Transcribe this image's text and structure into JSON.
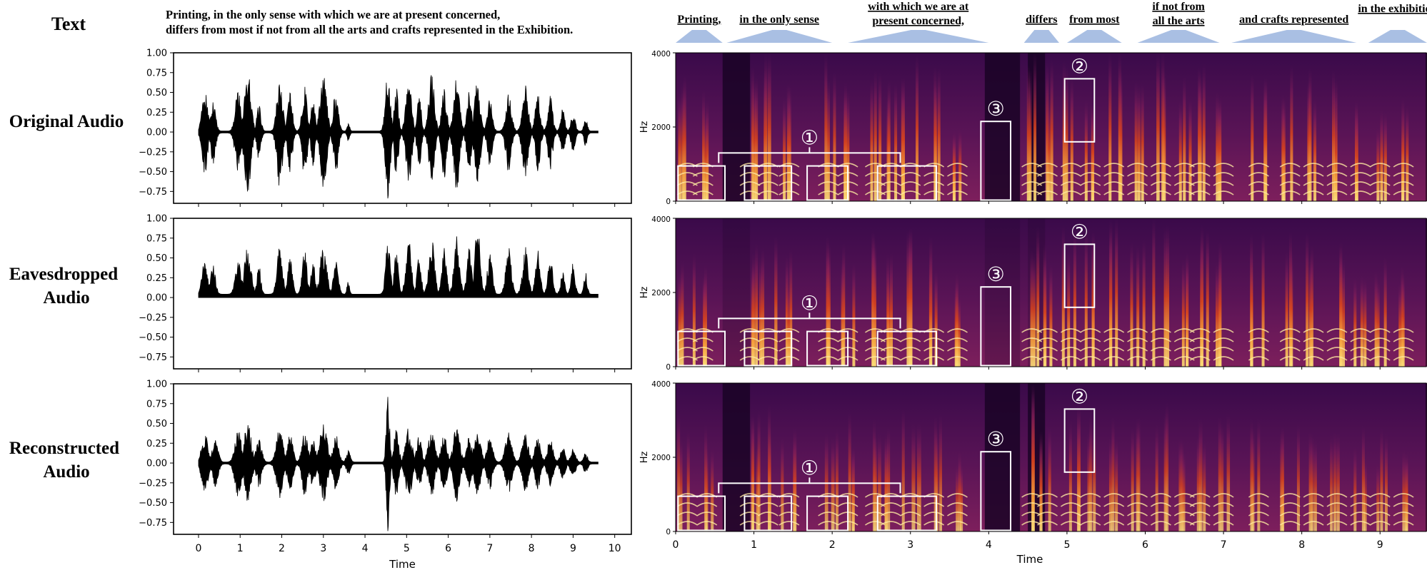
{
  "row_header": "Text",
  "transcript_lines": [
    "Printing, in the only sense with which we are at present concerned,",
    "differs from most if not from all the arts and crafts represented in the Exhibition."
  ],
  "rows": [
    {
      "label_lines": [
        "Original Audio"
      ]
    },
    {
      "label_lines": [
        "Eavesdropped",
        "Audio"
      ]
    },
    {
      "label_lines": [
        "Reconstructed",
        "Audio"
      ]
    }
  ],
  "phrases": [
    {
      "lines": [
        "Printing,"
      ],
      "t0": 0.0,
      "t1": 0.6
    },
    {
      "lines": [
        "in the only sense"
      ],
      "t0": 0.65,
      "t1": 2.0
    },
    {
      "lines": [
        "with which we are at",
        "present concerned,"
      ],
      "t0": 2.2,
      "t1": 4.0
    },
    {
      "lines": [
        "differs"
      ],
      "t0": 4.45,
      "t1": 4.9
    },
    {
      "lines": [
        "from most"
      ],
      "t0": 5.0,
      "t1": 5.7
    },
    {
      "lines": [
        "if not from",
        "all the arts"
      ],
      "t0": 5.9,
      "t1": 6.95
    },
    {
      "lines": [
        "and crafts represented"
      ],
      "t0": 7.1,
      "t1": 8.7
    },
    {
      "lines": [
        "in the exhibition"
      ],
      "t0": 8.85,
      "t1": 9.6
    }
  ],
  "annotations": {
    "one": "①",
    "two": "②",
    "three": "③"
  },
  "colors": {
    "waveform": "#000000",
    "spectrogram_dark": "#1a0326",
    "spectrogram_mid": "#7a1d63",
    "spectrogram_hot": "#e8521c",
    "spectrogram_bright": "#fde07a",
    "phrase_envelope": "#a9bfe3",
    "annotation_box": "#ffffff"
  },
  "chart_data": [
    {
      "type": "line",
      "panel": "waveform",
      "row": "Original Audio",
      "xlim": [
        -0.6,
        10.4
      ],
      "ylim": [
        -0.9,
        1.0
      ],
      "yticks": [
        "1.00",
        "0.75",
        "0.50",
        "0.25",
        "0.00",
        "−0.25",
        "−0.50",
        "−0.75"
      ],
      "bursts": [
        {
          "t": 0.15,
          "w": 0.14,
          "a": 0.52
        },
        {
          "t": 0.35,
          "w": 0.12,
          "a": 0.4
        },
        {
          "t": 0.95,
          "w": 0.14,
          "a": 0.55
        },
        {
          "t": 1.18,
          "w": 0.16,
          "a": 0.78
        },
        {
          "t": 1.45,
          "w": 0.1,
          "a": 0.35
        },
        {
          "t": 1.95,
          "w": 0.14,
          "a": 0.72
        },
        {
          "t": 2.2,
          "w": 0.12,
          "a": 0.5
        },
        {
          "t": 2.55,
          "w": 0.12,
          "a": 0.6
        },
        {
          "t": 2.75,
          "w": 0.1,
          "a": 0.45
        },
        {
          "t": 3.0,
          "w": 0.16,
          "a": 0.72
        },
        {
          "t": 3.3,
          "w": 0.12,
          "a": 0.55
        },
        {
          "t": 3.6,
          "w": 0.06,
          "a": 0.12
        },
        {
          "t": 4.55,
          "w": 0.12,
          "a": 0.85
        },
        {
          "t": 4.75,
          "w": 0.1,
          "a": 0.6
        },
        {
          "t": 5.05,
          "w": 0.14,
          "a": 0.7
        },
        {
          "t": 5.3,
          "w": 0.1,
          "a": 0.5
        },
        {
          "t": 5.6,
          "w": 0.14,
          "a": 0.72
        },
        {
          "t": 5.9,
          "w": 0.12,
          "a": 0.6
        },
        {
          "t": 6.2,
          "w": 0.14,
          "a": 0.8
        },
        {
          "t": 6.5,
          "w": 0.12,
          "a": 0.5
        },
        {
          "t": 6.7,
          "w": 0.14,
          "a": 0.65
        },
        {
          "t": 7.0,
          "w": 0.12,
          "a": 0.42
        },
        {
          "t": 7.45,
          "w": 0.14,
          "a": 0.5
        },
        {
          "t": 7.85,
          "w": 0.14,
          "a": 0.58
        },
        {
          "t": 8.15,
          "w": 0.12,
          "a": 0.5
        },
        {
          "t": 8.45,
          "w": 0.12,
          "a": 0.48
        },
        {
          "t": 8.75,
          "w": 0.1,
          "a": 0.3
        },
        {
          "t": 9.0,
          "w": 0.1,
          "a": 0.25
        },
        {
          "t": 9.3,
          "w": 0.08,
          "a": 0.18
        }
      ],
      "signal_end": 9.6,
      "rectified": false
    },
    {
      "type": "line",
      "panel": "waveform",
      "row": "Eavesdropped Audio",
      "xlim": [
        -0.6,
        10.4
      ],
      "ylim": [
        -0.9,
        1.0
      ],
      "yticks": [
        "1.00",
        "0.75",
        "0.50",
        "0.25",
        "0.00",
        "−0.25",
        "−0.50",
        "−0.75"
      ],
      "bursts": [
        {
          "t": 0.15,
          "w": 0.14,
          "a": 0.45
        },
        {
          "t": 0.35,
          "w": 0.12,
          "a": 0.4
        },
        {
          "t": 0.95,
          "w": 0.14,
          "a": 0.45
        },
        {
          "t": 1.18,
          "w": 0.16,
          "a": 0.65
        },
        {
          "t": 1.45,
          "w": 0.1,
          "a": 0.4
        },
        {
          "t": 1.95,
          "w": 0.14,
          "a": 0.6
        },
        {
          "t": 2.2,
          "w": 0.12,
          "a": 0.5
        },
        {
          "t": 2.55,
          "w": 0.12,
          "a": 0.55
        },
        {
          "t": 2.75,
          "w": 0.1,
          "a": 0.45
        },
        {
          "t": 3.0,
          "w": 0.16,
          "a": 0.65
        },
        {
          "t": 3.3,
          "w": 0.12,
          "a": 0.5
        },
        {
          "t": 3.6,
          "w": 0.06,
          "a": 0.2
        },
        {
          "t": 4.55,
          "w": 0.12,
          "a": 0.65
        },
        {
          "t": 4.75,
          "w": 0.1,
          "a": 0.55
        },
        {
          "t": 5.05,
          "w": 0.14,
          "a": 0.7
        },
        {
          "t": 5.3,
          "w": 0.1,
          "a": 0.55
        },
        {
          "t": 5.6,
          "w": 0.14,
          "a": 0.75
        },
        {
          "t": 5.9,
          "w": 0.12,
          "a": 0.6
        },
        {
          "t": 6.2,
          "w": 0.14,
          "a": 0.75
        },
        {
          "t": 6.5,
          "w": 0.12,
          "a": 0.6
        },
        {
          "t": 6.7,
          "w": 0.14,
          "a": 0.88
        },
        {
          "t": 7.0,
          "w": 0.12,
          "a": 0.55
        },
        {
          "t": 7.45,
          "w": 0.14,
          "a": 0.6
        },
        {
          "t": 7.85,
          "w": 0.14,
          "a": 0.6
        },
        {
          "t": 8.15,
          "w": 0.12,
          "a": 0.58
        },
        {
          "t": 8.45,
          "w": 0.12,
          "a": 0.5
        },
        {
          "t": 8.75,
          "w": 0.1,
          "a": 0.3
        },
        {
          "t": 9.0,
          "w": 0.1,
          "a": 0.4
        },
        {
          "t": 9.3,
          "w": 0.08,
          "a": 0.3
        }
      ],
      "signal_end": 9.6,
      "rectified": true
    },
    {
      "type": "line",
      "panel": "waveform",
      "row": "Reconstructed Audio",
      "xlabel": "Time",
      "xticks": [
        "0",
        "1",
        "2",
        "3",
        "4",
        "5",
        "6",
        "7",
        "8",
        "9",
        "10"
      ],
      "xlim": [
        -0.6,
        10.4
      ],
      "ylim": [
        -0.9,
        1.0
      ],
      "yticks": [
        "1.00",
        "0.75",
        "0.50",
        "0.25",
        "0.00",
        "−0.25",
        "−0.50",
        "−0.75"
      ],
      "bursts": [
        {
          "t": 0.15,
          "w": 0.16,
          "a": 0.38
        },
        {
          "t": 0.4,
          "w": 0.14,
          "a": 0.3
        },
        {
          "t": 0.95,
          "w": 0.16,
          "a": 0.42
        },
        {
          "t": 1.18,
          "w": 0.18,
          "a": 0.5
        },
        {
          "t": 1.45,
          "w": 0.14,
          "a": 0.3
        },
        {
          "t": 1.95,
          "w": 0.16,
          "a": 0.45
        },
        {
          "t": 2.2,
          "w": 0.14,
          "a": 0.35
        },
        {
          "t": 2.55,
          "w": 0.14,
          "a": 0.4
        },
        {
          "t": 2.75,
          "w": 0.12,
          "a": 0.32
        },
        {
          "t": 3.0,
          "w": 0.18,
          "a": 0.5
        },
        {
          "t": 3.3,
          "w": 0.14,
          "a": 0.35
        },
        {
          "t": 3.6,
          "w": 0.1,
          "a": 0.15
        },
        {
          "t": 4.55,
          "w": 0.08,
          "a": 0.88
        },
        {
          "t": 4.75,
          "w": 0.12,
          "a": 0.42
        },
        {
          "t": 5.05,
          "w": 0.16,
          "a": 0.45
        },
        {
          "t": 5.3,
          "w": 0.12,
          "a": 0.35
        },
        {
          "t": 5.6,
          "w": 0.16,
          "a": 0.42
        },
        {
          "t": 5.9,
          "w": 0.14,
          "a": 0.38
        },
        {
          "t": 6.2,
          "w": 0.16,
          "a": 0.48
        },
        {
          "t": 6.5,
          "w": 0.14,
          "a": 0.32
        },
        {
          "t": 6.7,
          "w": 0.16,
          "a": 0.4
        },
        {
          "t": 7.0,
          "w": 0.14,
          "a": 0.35
        },
        {
          "t": 7.45,
          "w": 0.16,
          "a": 0.38
        },
        {
          "t": 7.85,
          "w": 0.16,
          "a": 0.35
        },
        {
          "t": 8.15,
          "w": 0.14,
          "a": 0.32
        },
        {
          "t": 8.45,
          "w": 0.14,
          "a": 0.3
        },
        {
          "t": 8.75,
          "w": 0.12,
          "a": 0.2
        },
        {
          "t": 9.0,
          "w": 0.12,
          "a": 0.18
        },
        {
          "t": 9.3,
          "w": 0.1,
          "a": 0.12
        }
      ],
      "signal_end": 9.6,
      "rectified": false
    },
    {
      "type": "heatmap",
      "panel": "spectrogram",
      "rows": [
        "Original Audio",
        "Eavesdropped Audio",
        "Reconstructed Audio"
      ],
      "ylabel": "Hz",
      "yticks": [
        "4000",
        "2000",
        "0"
      ],
      "ylim": [
        0,
        4000
      ],
      "xlabel": "Time",
      "xticks": [
        "0",
        "1",
        "2",
        "3",
        "4",
        "5",
        "6",
        "7",
        "8",
        "9"
      ],
      "xlim": [
        0,
        9.6
      ],
      "silent_gaps": [
        [
          0.6,
          0.95
        ],
        [
          3.95,
          4.4
        ],
        [
          4.5,
          4.72
        ]
      ],
      "boxes": [
        {
          "label": "one",
          "t0": 0.03,
          "t1": 0.63,
          "f0": 30,
          "f1": 950
        },
        {
          "label": "one",
          "t0": 0.88,
          "t1": 1.48,
          "f0": 30,
          "f1": 950
        },
        {
          "label": "one",
          "t0": 1.68,
          "t1": 2.2,
          "f0": 30,
          "f1": 950
        },
        {
          "label": "one",
          "t0": 2.58,
          "t1": 3.33,
          "f0": 30,
          "f1": 950
        },
        {
          "label": "two",
          "t0": 4.97,
          "t1": 5.35,
          "f0": 1600,
          "f1": 3300
        },
        {
          "label": "three",
          "t0": 3.9,
          "t1": 4.28,
          "f0": 30,
          "f1": 2150
        }
      ],
      "bracket": {
        "label": "one",
        "t0": 0.55,
        "t1": 2.87
      }
    }
  ]
}
